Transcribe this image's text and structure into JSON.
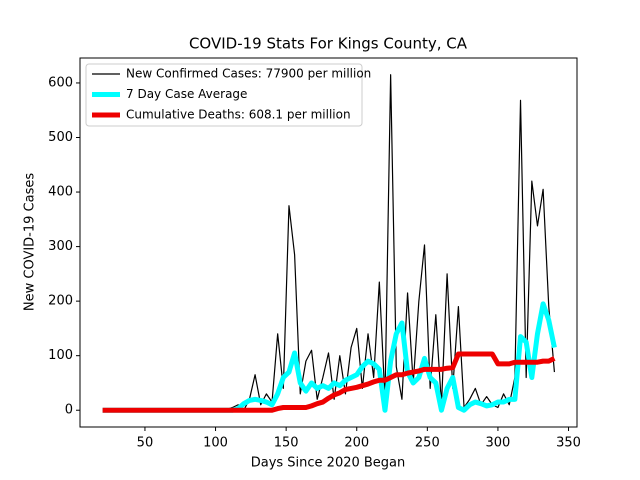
{
  "chart_data": {
    "type": "line",
    "title": "COVID-19 Stats For Kings County, CA",
    "xlabel": "Days Since 2020 Began",
    "ylabel": "New COVID-19 Cases",
    "x": [
      20,
      60,
      100,
      106,
      112,
      116,
      120,
      124,
      128,
      132,
      136,
      140,
      144,
      148,
      152,
      156,
      160,
      164,
      168,
      172,
      176,
      180,
      184,
      188,
      192,
      196,
      200,
      204,
      208,
      212,
      216,
      220,
      224,
      228,
      232,
      236,
      240,
      244,
      248,
      252,
      256,
      260,
      264,
      268,
      272,
      276,
      280,
      284,
      288,
      292,
      296,
      300,
      304,
      308,
      312,
      316,
      320,
      324,
      328,
      332,
      336,
      340
    ],
    "series": [
      {
        "name": "New Confirmed Cases: 77900 per million",
        "color": "#000000",
        "width": 1.2,
        "values": [
          0,
          0,
          0,
          0,
          5,
          10,
          0,
          20,
          65,
          10,
          30,
          15,
          140,
          40,
          375,
          285,
          30,
          90,
          110,
          20,
          60,
          105,
          20,
          100,
          30,
          115,
          150,
          40,
          140,
          60,
          235,
          20,
          615,
          80,
          20,
          215,
          50,
          200,
          303,
          40,
          175,
          10,
          250,
          40,
          190,
          5,
          20,
          40,
          10,
          25,
          10,
          5,
          30,
          10,
          60,
          568,
          60,
          420,
          338,
          405,
          190,
          70
        ]
      },
      {
        "name": "7 Day Case Average",
        "color": "#00ffff",
        "width": 5,
        "values": [
          0,
          0,
          0,
          0,
          0,
          3,
          12,
          18,
          20,
          18,
          15,
          10,
          30,
          60,
          70,
          105,
          50,
          35,
          50,
          40,
          45,
          40,
          50,
          45,
          55,
          60,
          65,
          80,
          90,
          85,
          75,
          0,
          90,
          140,
          160,
          70,
          50,
          60,
          95,
          60,
          50,
          0,
          40,
          60,
          5,
          0,
          10,
          15,
          12,
          8,
          10,
          15,
          15,
          20,
          20,
          135,
          125,
          60,
          140,
          195,
          165,
          115
        ]
      },
      {
        "name": "Cumulative Deaths: 608.1 per million",
        "color": "#ee0000",
        "width": 5,
        "values": [
          0,
          0,
          0,
          0,
          0,
          0,
          0,
          0,
          0,
          0,
          0,
          0,
          3,
          5,
          5,
          5,
          5,
          5,
          8,
          12,
          15,
          22,
          28,
          32,
          38,
          40,
          42,
          45,
          48,
          52,
          55,
          55,
          60,
          65,
          65,
          68,
          70,
          72,
          75,
          75,
          75,
          75,
          77,
          78,
          103,
          103,
          103,
          103,
          103,
          103,
          103,
          85,
          85,
          85,
          88,
          88,
          88,
          88,
          88,
          90,
          90,
          95
        ]
      }
    ],
    "xlim": [
      4,
      356
    ],
    "ylim": [
      -30.75,
      645.75
    ],
    "xticks": [
      50,
      100,
      150,
      200,
      250,
      300,
      350
    ],
    "yticks": [
      0,
      100,
      200,
      300,
      400,
      500,
      600
    ],
    "legend": "upper left"
  }
}
